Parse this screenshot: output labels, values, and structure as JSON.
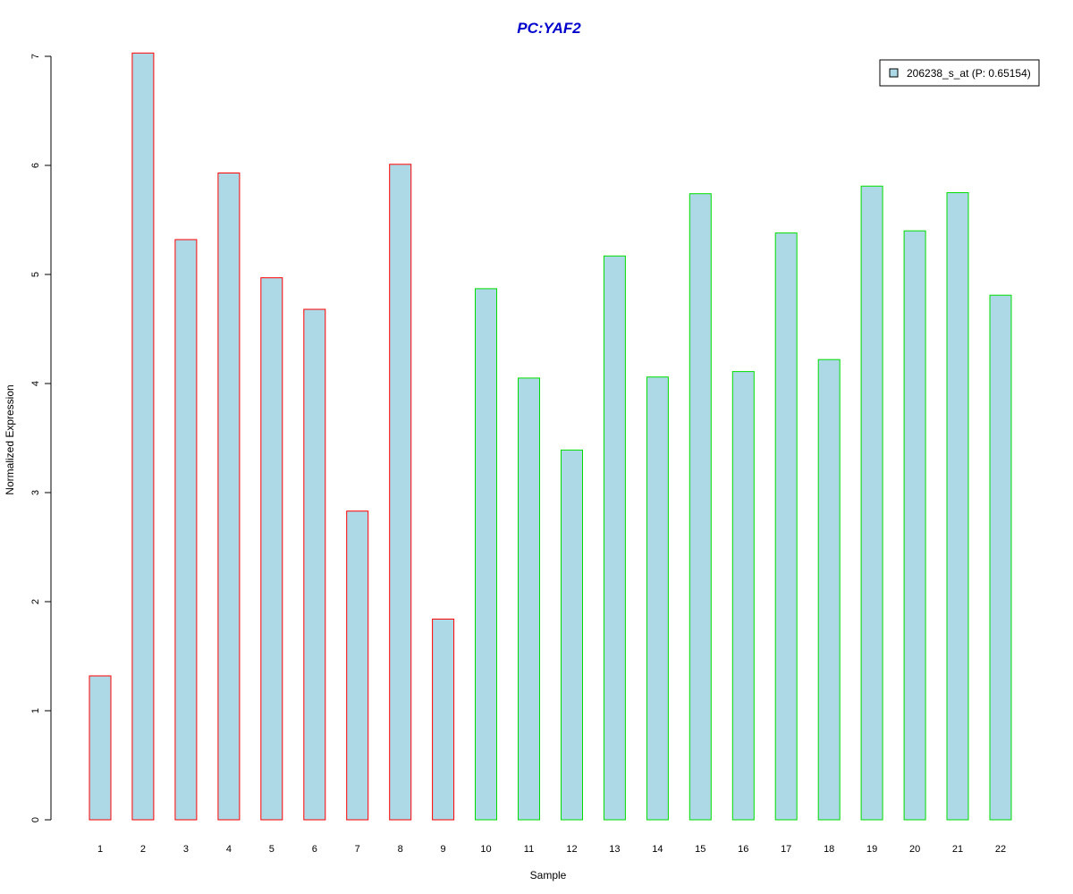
{
  "chart_data": {
    "type": "bar",
    "title": "PC:YAF2",
    "xlabel": "Sample",
    "ylabel": "Normalized Expression",
    "categories": [
      "1",
      "2",
      "3",
      "4",
      "5",
      "6",
      "7",
      "8",
      "9",
      "10",
      "11",
      "12",
      "13",
      "14",
      "15",
      "16",
      "17",
      "18",
      "19",
      "20",
      "21",
      "22"
    ],
    "series": [
      {
        "name": "206238_s_at (P: 0.65154)",
        "values": [
          1.32,
          7.03,
          5.32,
          5.93,
          4.97,
          4.68,
          2.83,
          6.01,
          1.84,
          4.87,
          4.05,
          3.39,
          5.17,
          4.06,
          5.74,
          4.11,
          5.38,
          4.22,
          5.81,
          5.4,
          5.75,
          4.81
        ]
      }
    ],
    "groups": [
      {
        "samples": [
          "1",
          "2",
          "3",
          "4",
          "5",
          "6",
          "7",
          "8",
          "9"
        ],
        "border_color": "#ff0000"
      },
      {
        "samples": [
          "10",
          "11",
          "12",
          "13",
          "14",
          "15",
          "16",
          "17",
          "18",
          "19",
          "20",
          "21",
          "22"
        ],
        "border_color": "#00dd00"
      }
    ],
    "yticks": [
      0,
      1,
      2,
      3,
      4,
      5,
      6,
      7
    ],
    "ylim": [
      0,
      7
    ],
    "legend_position": "top-right",
    "grid": false
  },
  "colors": {
    "bar_fill": "#add8e6",
    "group1_border": "#ff0000",
    "group2_border": "#00dd00",
    "title": "#0000cc",
    "axis": "#000000"
  }
}
